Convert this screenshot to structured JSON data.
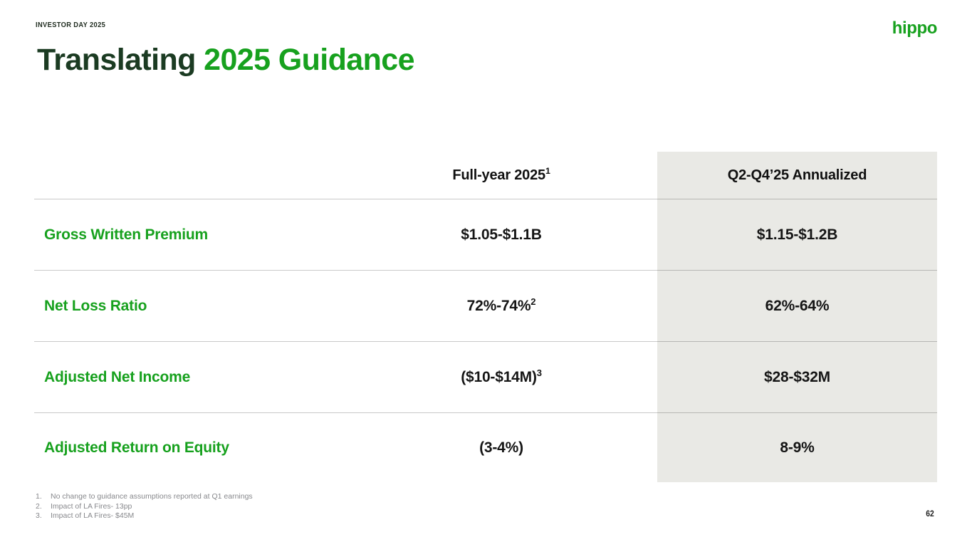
{
  "meta": {
    "eyebrow": "INVESTOR DAY 2025",
    "logo_text": "hippo",
    "page_number": "62"
  },
  "title": {
    "prefix": "Translating ",
    "highlight": "2025 Guidance"
  },
  "table": {
    "columns": [
      {
        "label": ""
      },
      {
        "label": "Full-year 2025",
        "superscript": "1"
      },
      {
        "label": "Q2-Q4’25 Annualized",
        "superscript": ""
      }
    ],
    "rows": [
      {
        "label": "Gross Written Premium",
        "full_year": "$1.05-$1.1B",
        "full_year_sup": "",
        "annualized": "$1.15-$1.2B"
      },
      {
        "label": "Net Loss Ratio",
        "full_year": "72%-74%",
        "full_year_sup": "2",
        "annualized": "62%-64%"
      },
      {
        "label": "Adjusted Net Income",
        "full_year": "($10-$14M)",
        "full_year_sup": "3",
        "annualized": "$28-$32M"
      },
      {
        "label": "Adjusted Return on Equity",
        "full_year": "(3-4%)",
        "full_year_sup": "",
        "annualized": "8-9%"
      }
    ]
  },
  "footnotes": [
    {
      "num": "1.",
      "text": "No change to guidance assumptions reported at Q1 earnings"
    },
    {
      "num": "2.",
      "text": "Impact of LA Fires- 13pp"
    },
    {
      "num": "3.",
      "text": "Impact of LA Fires- $45M"
    }
  ],
  "colors": {
    "accent_green": "#17a11e",
    "title_dark_green": "#1b3b22",
    "highlight_column_bg": "#e9e9e5",
    "divider": "#c9c9c9",
    "footnote_gray": "#87888c"
  }
}
